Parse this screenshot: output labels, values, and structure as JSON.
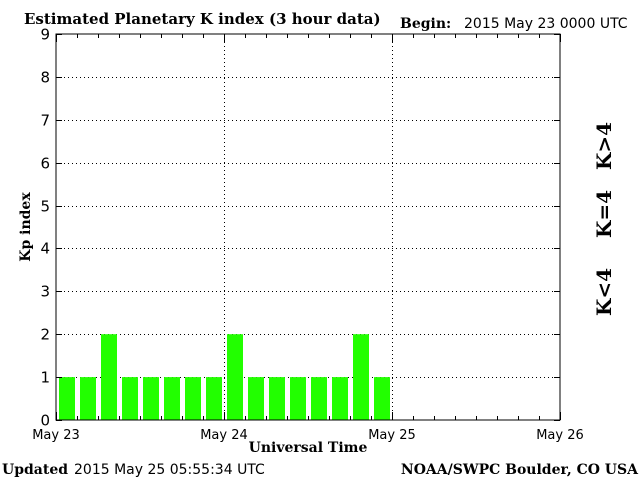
{
  "chart_data": {
    "type": "bar",
    "title": "Estimated Planetary K index (3 hour data)",
    "begin_label": "Begin:",
    "begin_value": "2015 May 23 0000 UTC",
    "xlabel": "Universal Time",
    "ylabel": "Kp index",
    "ylim": [
      0,
      9
    ],
    "yticks": [
      "0",
      "1",
      "2",
      "3",
      "4",
      "5",
      "6",
      "7",
      "8",
      "9"
    ],
    "xticks": [
      "May 23",
      "May 24",
      "May 25",
      "May 26"
    ],
    "grid": true,
    "slots_per_day": 8,
    "values": [
      1,
      1,
      2,
      1,
      1,
      1,
      1,
      1,
      2,
      1,
      1,
      1,
      1,
      1,
      2,
      1
    ],
    "bar_color": "#22ff00",
    "legend": [
      {
        "label": "K<4",
        "color": "#22ff00"
      },
      {
        "label": "K=4",
        "color": "#ffd000"
      },
      {
        "label": "K>4",
        "color": "#ff2200"
      }
    ]
  },
  "footer": {
    "updated_label": "Updated",
    "updated_value": "2015 May 25 05:55:34 UTC",
    "source": "NOAA/SWPC Boulder, CO USA"
  }
}
